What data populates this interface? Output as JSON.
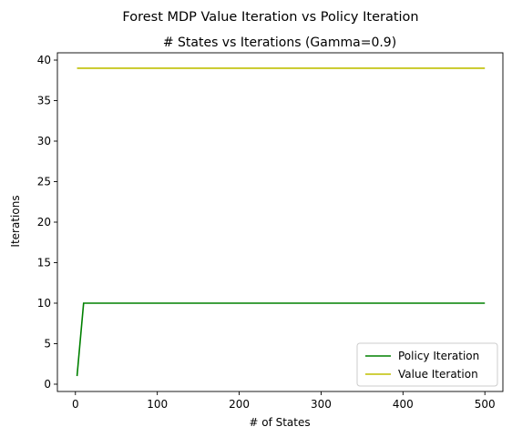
{
  "chart_data": {
    "type": "line",
    "suptitle": "Forest MDP Value Iteration vs Policy Iteration",
    "title": "# States vs Iterations (Gamma=0.9)",
    "xlabel": "# of States",
    "ylabel": "Iterations",
    "xlim": [
      -22,
      522
    ],
    "ylim": [
      -0.9,
      40.9
    ],
    "xticks": [
      0,
      100,
      200,
      300,
      400,
      500
    ],
    "yticks": [
      0,
      5,
      10,
      15,
      20,
      25,
      30,
      35,
      40
    ],
    "grid": false,
    "legend": "lower-right",
    "series": [
      {
        "name": "Policy Iteration",
        "color": "#008000",
        "x": [
          2,
          10,
          20,
          50,
          100,
          200,
          300,
          400,
          500
        ],
        "y": [
          1,
          10,
          10,
          10,
          10,
          10,
          10,
          10,
          10
        ]
      },
      {
        "name": "Value Iteration",
        "color": "#bfbf00",
        "x": [
          2,
          10,
          20,
          50,
          100,
          200,
          300,
          400,
          500
        ],
        "y": [
          39,
          39,
          39,
          39,
          39,
          39,
          39,
          39,
          39
        ]
      }
    ]
  }
}
